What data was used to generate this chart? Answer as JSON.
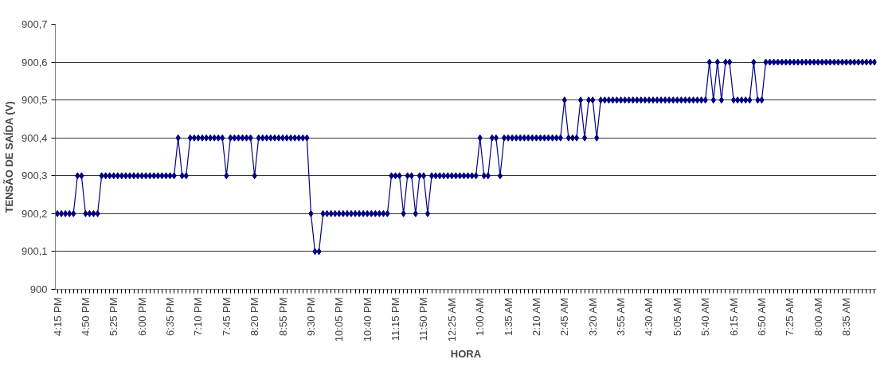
{
  "chart_data": {
    "type": "line",
    "xlabel": "HORA",
    "ylabel": "TENSÃO DE SAÍDA (V)",
    "categories": [
      "4:15 PM",
      null,
      null,
      null,
      null,
      null,
      null,
      "4:50 PM",
      null,
      null,
      null,
      null,
      null,
      null,
      "5:25 PM",
      null,
      null,
      null,
      null,
      null,
      null,
      "6:00 PM",
      null,
      null,
      null,
      null,
      null,
      null,
      "6:35 PM",
      null,
      null,
      null,
      null,
      null,
      null,
      "7:10 PM",
      null,
      null,
      null,
      null,
      null,
      null,
      "7:45 PM",
      null,
      null,
      null,
      null,
      null,
      null,
      "8:20 PM",
      null,
      null,
      null,
      null,
      null,
      null,
      "8:55 PM",
      null,
      null,
      null,
      null,
      null,
      null,
      "9:30 PM",
      null,
      null,
      null,
      null,
      null,
      null,
      "10:05 PM",
      null,
      null,
      null,
      null,
      null,
      null,
      "10:40 PM",
      null,
      null,
      null,
      null,
      null,
      null,
      "11:15 PM",
      null,
      null,
      null,
      null,
      null,
      null,
      "11:50 PM",
      null,
      null,
      null,
      null,
      null,
      null,
      "12:25 AM",
      null,
      null,
      null,
      null,
      null,
      null,
      "1:00 AM",
      null,
      null,
      null,
      null,
      null,
      null,
      "1:35 AM",
      null,
      null,
      null,
      null,
      null,
      null,
      "2:10 AM",
      null,
      null,
      null,
      null,
      null,
      null,
      "2:45 AM",
      null,
      null,
      null,
      null,
      null,
      null,
      "3:20 AM",
      null,
      null,
      null,
      null,
      null,
      null,
      "3:55 AM",
      null,
      null,
      null,
      null,
      null,
      null,
      "4:30 AM",
      null,
      null,
      null,
      null,
      null,
      null,
      "5:05 AM",
      null,
      null,
      null,
      null,
      null,
      null,
      "5:40 AM",
      null,
      null,
      null,
      null,
      null,
      null,
      "6:15 AM",
      null,
      null,
      null,
      null,
      null,
      null,
      "6:50 AM",
      null,
      null,
      null,
      null,
      null,
      null,
      "7:25 AM",
      null,
      null,
      null,
      null,
      null,
      null,
      "8:00 AM",
      null,
      null,
      null,
      null,
      null,
      null,
      "8:35 AM",
      null,
      null,
      null,
      null,
      null,
      null,
      null
    ],
    "series": [
      {
        "color": "#000080",
        "values": [
          900.2,
          900.2,
          900.2,
          900.2,
          900.2,
          900.3,
          900.3,
          900.2,
          900.2,
          900.2,
          900.2,
          900.3,
          900.3,
          900.3,
          900.3,
          900.3,
          900.3,
          900.3,
          900.3,
          900.3,
          900.3,
          900.3,
          900.3,
          900.3,
          900.3,
          900.3,
          900.3,
          900.3,
          900.3,
          900.3,
          900.4,
          900.3,
          900.3,
          900.4,
          900.4,
          900.4,
          900.4,
          900.4,
          900.4,
          900.4,
          900.4,
          900.4,
          900.3,
          900.4,
          900.4,
          900.4,
          900.4,
          900.4,
          900.4,
          900.3,
          900.4,
          900.4,
          900.4,
          900.4,
          900.4,
          900.4,
          900.4,
          900.4,
          900.4,
          900.4,
          900.4,
          900.4,
          900.4,
          900.2,
          900.1,
          900.1,
          900.2,
          900.2,
          900.2,
          900.2,
          900.2,
          900.2,
          900.2,
          900.2,
          900.2,
          900.2,
          900.2,
          900.2,
          900.2,
          900.2,
          900.2,
          900.2,
          900.2,
          900.3,
          900.3,
          900.3,
          900.2,
          900.3,
          900.3,
          900.2,
          900.3,
          900.3,
          900.2,
          900.3,
          900.3,
          900.3,
          900.3,
          900.3,
          900.3,
          900.3,
          900.3,
          900.3,
          900.3,
          900.3,
          900.3,
          900.4,
          900.3,
          900.3,
          900.4,
          900.4,
          900.3,
          900.4,
          900.4,
          900.4,
          900.4,
          900.4,
          900.4,
          900.4,
          900.4,
          900.4,
          900.4,
          900.4,
          900.4,
          900.4,
          900.4,
          900.4,
          900.5,
          900.4,
          900.4,
          900.4,
          900.5,
          900.4,
          900.5,
          900.5,
          900.4,
          900.5,
          900.5,
          900.5,
          900.5,
          900.5,
          900.5,
          900.5,
          900.5,
          900.5,
          900.5,
          900.5,
          900.5,
          900.5,
          900.5,
          900.5,
          900.5,
          900.5,
          900.5,
          900.5,
          900.5,
          900.5,
          900.5,
          900.5,
          900.5,
          900.5,
          900.5,
          900.5,
          900.6,
          900.5,
          900.6,
          900.5,
          900.6,
          900.6,
          900.5,
          900.5,
          900.5,
          900.5,
          900.5,
          900.6,
          900.5,
          900.5,
          900.6,
          900.6,
          900.6,
          900.6,
          900.6,
          900.6,
          900.6,
          900.6,
          900.6,
          900.6,
          900.6,
          900.6,
          900.6,
          900.6,
          900.6,
          900.6,
          900.6,
          900.6,
          900.6,
          900.6,
          900.6,
          900.6,
          900.6,
          900.6,
          900.6,
          900.6,
          900.6,
          900.6
        ]
      }
    ],
    "ylim": [
      900,
      900.7
    ],
    "yticks": [
      900,
      {
        "value": 900.1,
        "label": "900,1"
      },
      {
        "value": 900.2,
        "label": "900,2"
      },
      {
        "value": 900.3,
        "label": "900,3"
      },
      {
        "value": 900.4,
        "label": "900,4"
      },
      {
        "value": 900.5,
        "label": "900,5"
      },
      {
        "value": 900.6,
        "label": "900,6"
      },
      {
        "value": 900.7,
        "label": "900,7"
      }
    ],
    "grid": "y",
    "marker": "diamond",
    "line_style": "solid"
  }
}
